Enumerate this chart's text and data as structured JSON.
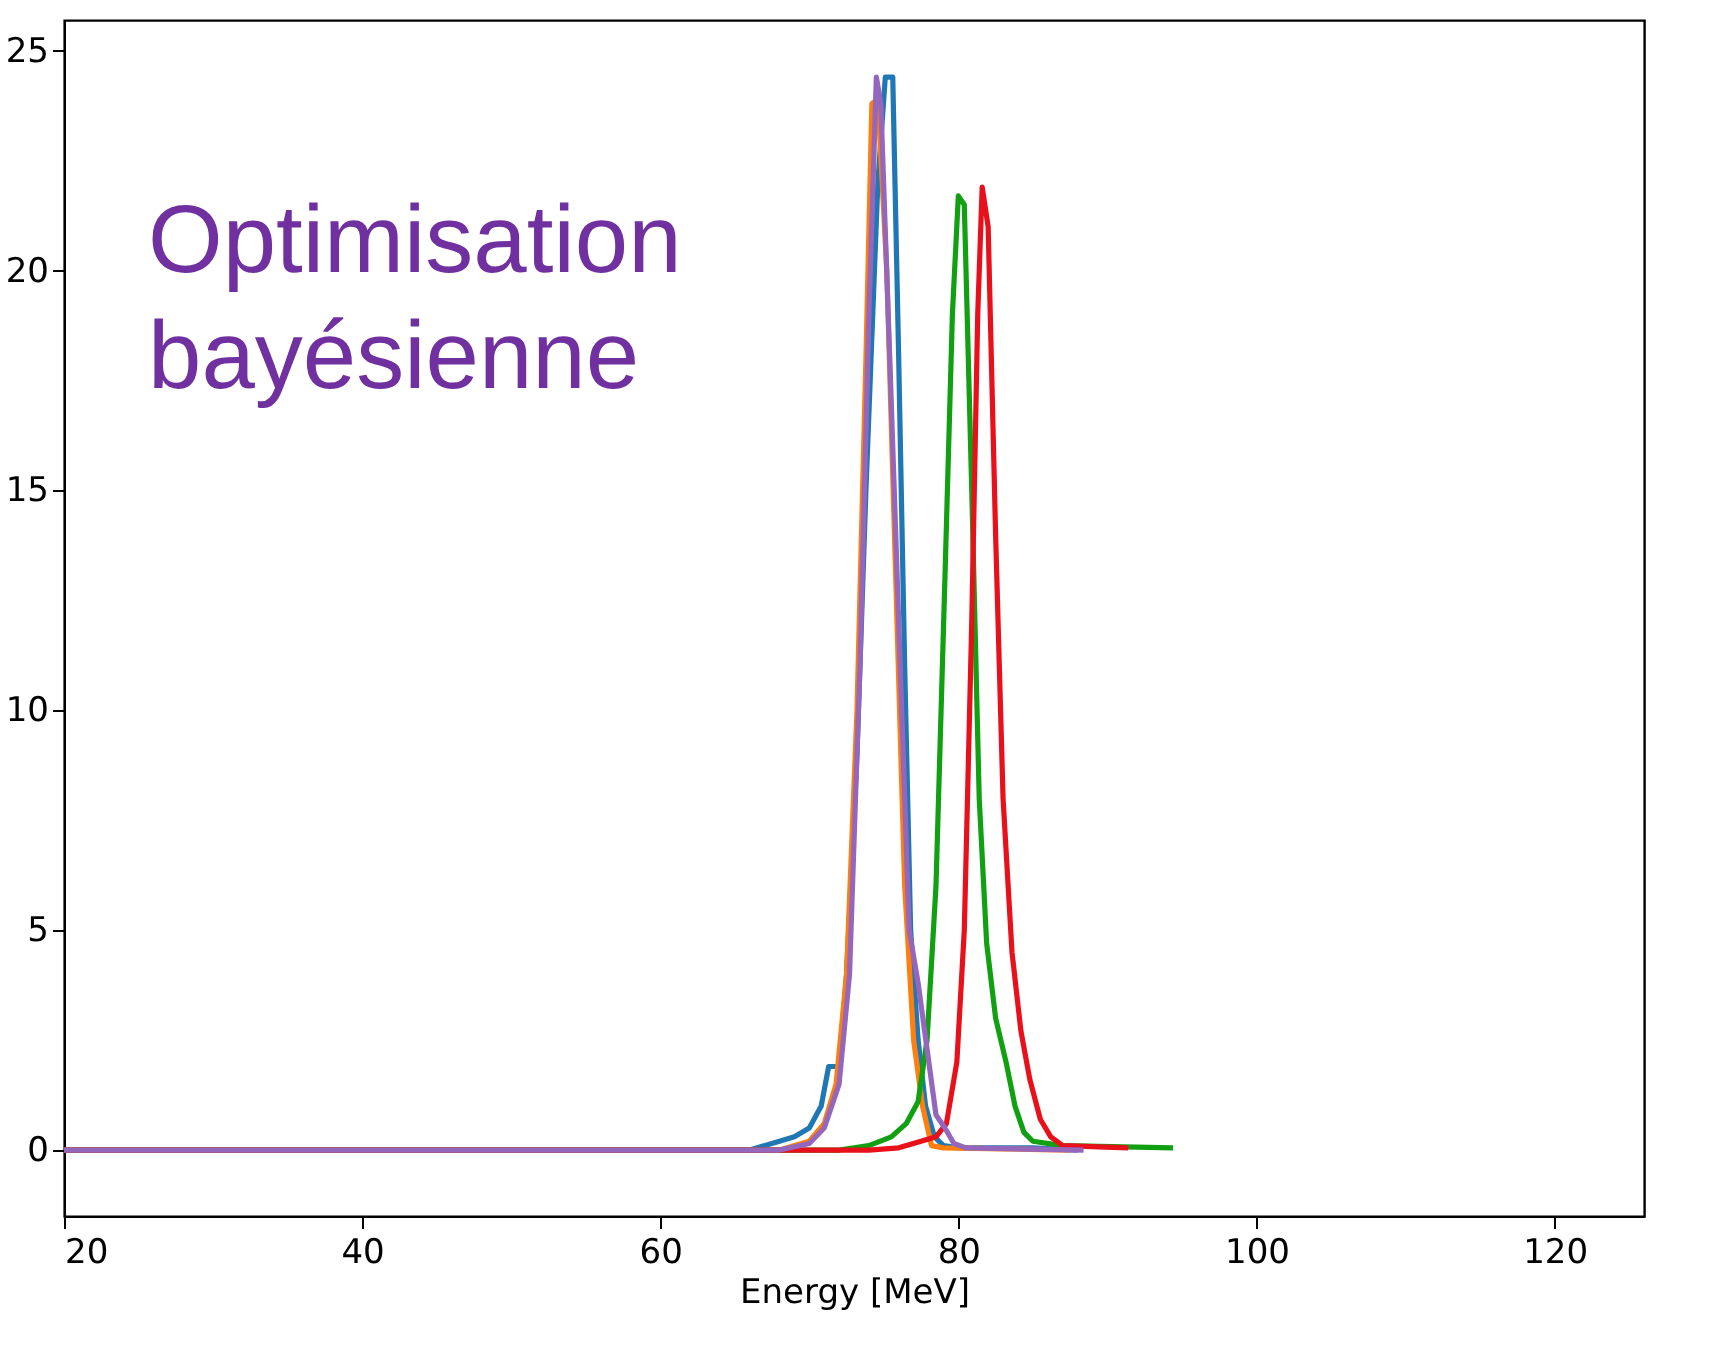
{
  "chart_data": {
    "type": "line",
    "xlabel": "Energy [MeV]",
    "annotations": [
      "Optimisation\nbayésienne"
    ],
    "xlim": [
      20,
      126
    ],
    "xticks": [
      20,
      40,
      60,
      80,
      100,
      120
    ],
    "ylim": [
      -1.5,
      25.7
    ],
    "yticks": [
      0,
      5,
      10,
      15,
      20,
      25
    ],
    "grid": false,
    "marker": "none",
    "line_style": "solid",
    "series": [
      {
        "color": "#1f77b4",
        "x": [
          20,
          66,
          68,
          69,
          70,
          70.8,
          71.3,
          72,
          72.5,
          73.2,
          73.8,
          74.6,
          75.1,
          75.6,
          76.0,
          76.4,
          76.8,
          77.3,
          77.8,
          78.4,
          79,
          80,
          85,
          88
        ],
        "values": [
          0,
          0,
          0.2,
          0.3,
          0.5,
          1.0,
          1.9,
          1.9,
          4,
          9,
          15,
          22,
          24.4,
          24.4,
          18,
          11,
          5,
          2.5,
          1.0,
          0.3,
          0.1,
          0.05,
          0.05,
          0
        ]
      },
      {
        "color": "#ff7f0e",
        "x": [
          20,
          68,
          70,
          71,
          71.8,
          72.5,
          73.2,
          73.8,
          74.2,
          74.6,
          75.2,
          75.8,
          76.4,
          77,
          77.6,
          78.2,
          79,
          87.5
        ],
        "values": [
          0,
          0,
          0.2,
          0.6,
          1.5,
          4,
          10,
          18,
          23.8,
          23.9,
          20,
          13,
          6,
          2.5,
          1.0,
          0.1,
          0.05,
          0
        ]
      },
      {
        "color": "#11a011",
        "x": [
          20,
          72,
          74,
          75.5,
          76.5,
          77.3,
          77.9,
          78.5,
          79.1,
          79.6,
          80,
          80.4,
          80.9,
          81.4,
          81.9,
          82.5,
          83.2,
          83.8,
          84.4,
          85,
          87,
          94.4
        ],
        "values": [
          0,
          0,
          0.1,
          0.3,
          0.6,
          1.1,
          2.5,
          6,
          13,
          19,
          21.7,
          21.5,
          15,
          8,
          4.7,
          3,
          2,
          1.0,
          0.4,
          0.2,
          0.1,
          0.05
        ]
      },
      {
        "color": "#e8101a",
        "x": [
          20,
          74,
          76,
          77.5,
          78.5,
          79.2,
          79.9,
          80.4,
          80.9,
          81.3,
          81.6,
          82,
          82.5,
          83,
          83.6,
          84.2,
          84.8,
          85.5,
          86.2,
          87,
          91.4
        ],
        "values": [
          0,
          0,
          0.05,
          0.2,
          0.3,
          0.6,
          2,
          5,
          12,
          19,
          21.9,
          21,
          14,
          8,
          4.5,
          2.7,
          1.6,
          0.7,
          0.3,
          0.1,
          0.05
        ]
      },
      {
        "color": "#9467bd",
        "x": [
          20,
          68,
          70,
          71,
          72,
          72.7,
          73.4,
          74,
          74.5,
          74.8,
          75.4,
          76.2,
          76.7,
          77.3,
          77.9,
          78.5,
          79.1,
          79.7,
          80.5,
          88.4
        ],
        "values": [
          0,
          0,
          0.15,
          0.5,
          1.5,
          4,
          11,
          19,
          24.4,
          23.8,
          18,
          10,
          5,
          3.8,
          2.3,
          0.8,
          0.5,
          0.15,
          0.05,
          0
        ]
      }
    ]
  }
}
